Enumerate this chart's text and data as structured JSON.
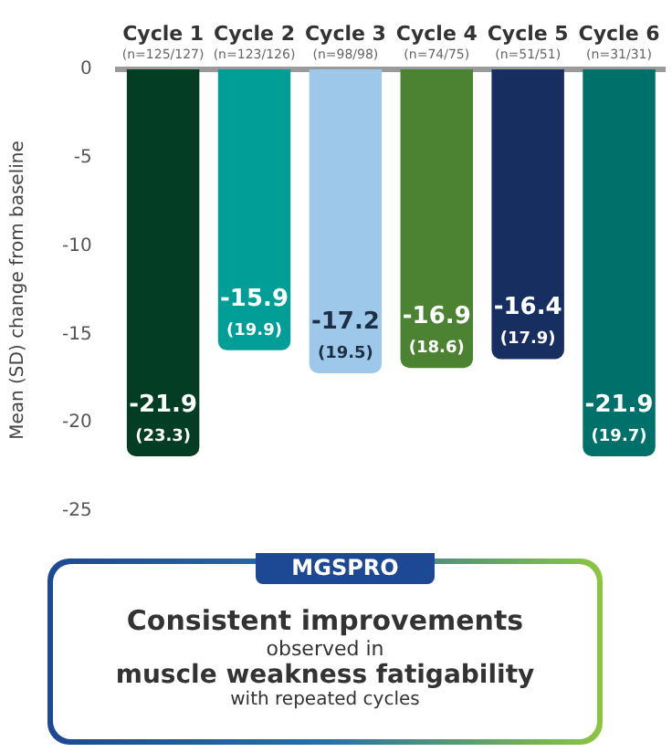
{
  "chart_data": {
    "type": "bar",
    "categories": [
      "Cycle 1\n(n=125/127)",
      "Cycle 2\n(n=123/126)",
      "Cycle 3\n(n=98/98)",
      "Cycle 4\n(n=74/75)",
      "Cycle 5\n(n=51/51)",
      "Cycle 6\n(n=31/31)"
    ],
    "values": [
      -21.9,
      -15.9,
      -17.2,
      -16.9,
      -16.4,
      -21.9
    ],
    "colors": [
      "#033d24",
      "#009e96",
      "#9dc8e9",
      "#4b8332",
      "#172f60",
      "#00716a"
    ],
    "value_labels": [
      "-21.9\n(23.3)",
      "-15.9\n(19.9)",
      "-17.2\n(19.5)",
      "-16.9\n(18.6)",
      "-16.4\n(17.9)",
      "-21.9\n(19.7)"
    ],
    "ylabel": "Mean (SD) change from baseline",
    "ylim": [
      -25,
      0
    ],
    "yticks": [
      0,
      -5,
      -10,
      -15,
      -20,
      -25
    ],
    "grid": false,
    "legend": false,
    "annotations": [
      "MGSPRO",
      "Consistent improvements",
      "observed in",
      "muscle weakness fatigability",
      "with repeated cycles"
    ]
  }
}
